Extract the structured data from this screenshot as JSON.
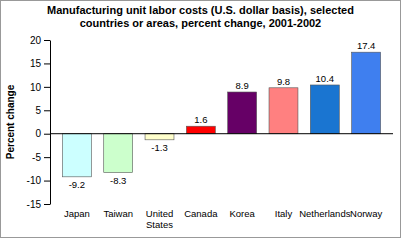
{
  "chart_data": {
    "type": "bar",
    "title": "Manufacturing unit labor costs (U.S. dollar basis), selected countries or areas, percent change, 2001-2002",
    "ylabel": "Percent change",
    "categories": [
      "Japan",
      "Taiwan",
      "United States",
      "Canada",
      "Korea",
      "Italy",
      "Netherlands",
      "Norway"
    ],
    "values": [
      -9.2,
      -8.3,
      -1.3,
      1.6,
      8.9,
      9.8,
      10.4,
      17.4
    ],
    "colors": [
      "#ccffff",
      "#ccffcc",
      "#ffffcc",
      "#ff0000",
      "#660066",
      "#ff8080",
      "#1a75d1",
      "#3f7fef"
    ],
    "ylim": [
      -15,
      20
    ],
    "yticks": [
      -15,
      -10,
      -5,
      0,
      5,
      10,
      15,
      20
    ],
    "grid": false,
    "data_labels": true
  }
}
